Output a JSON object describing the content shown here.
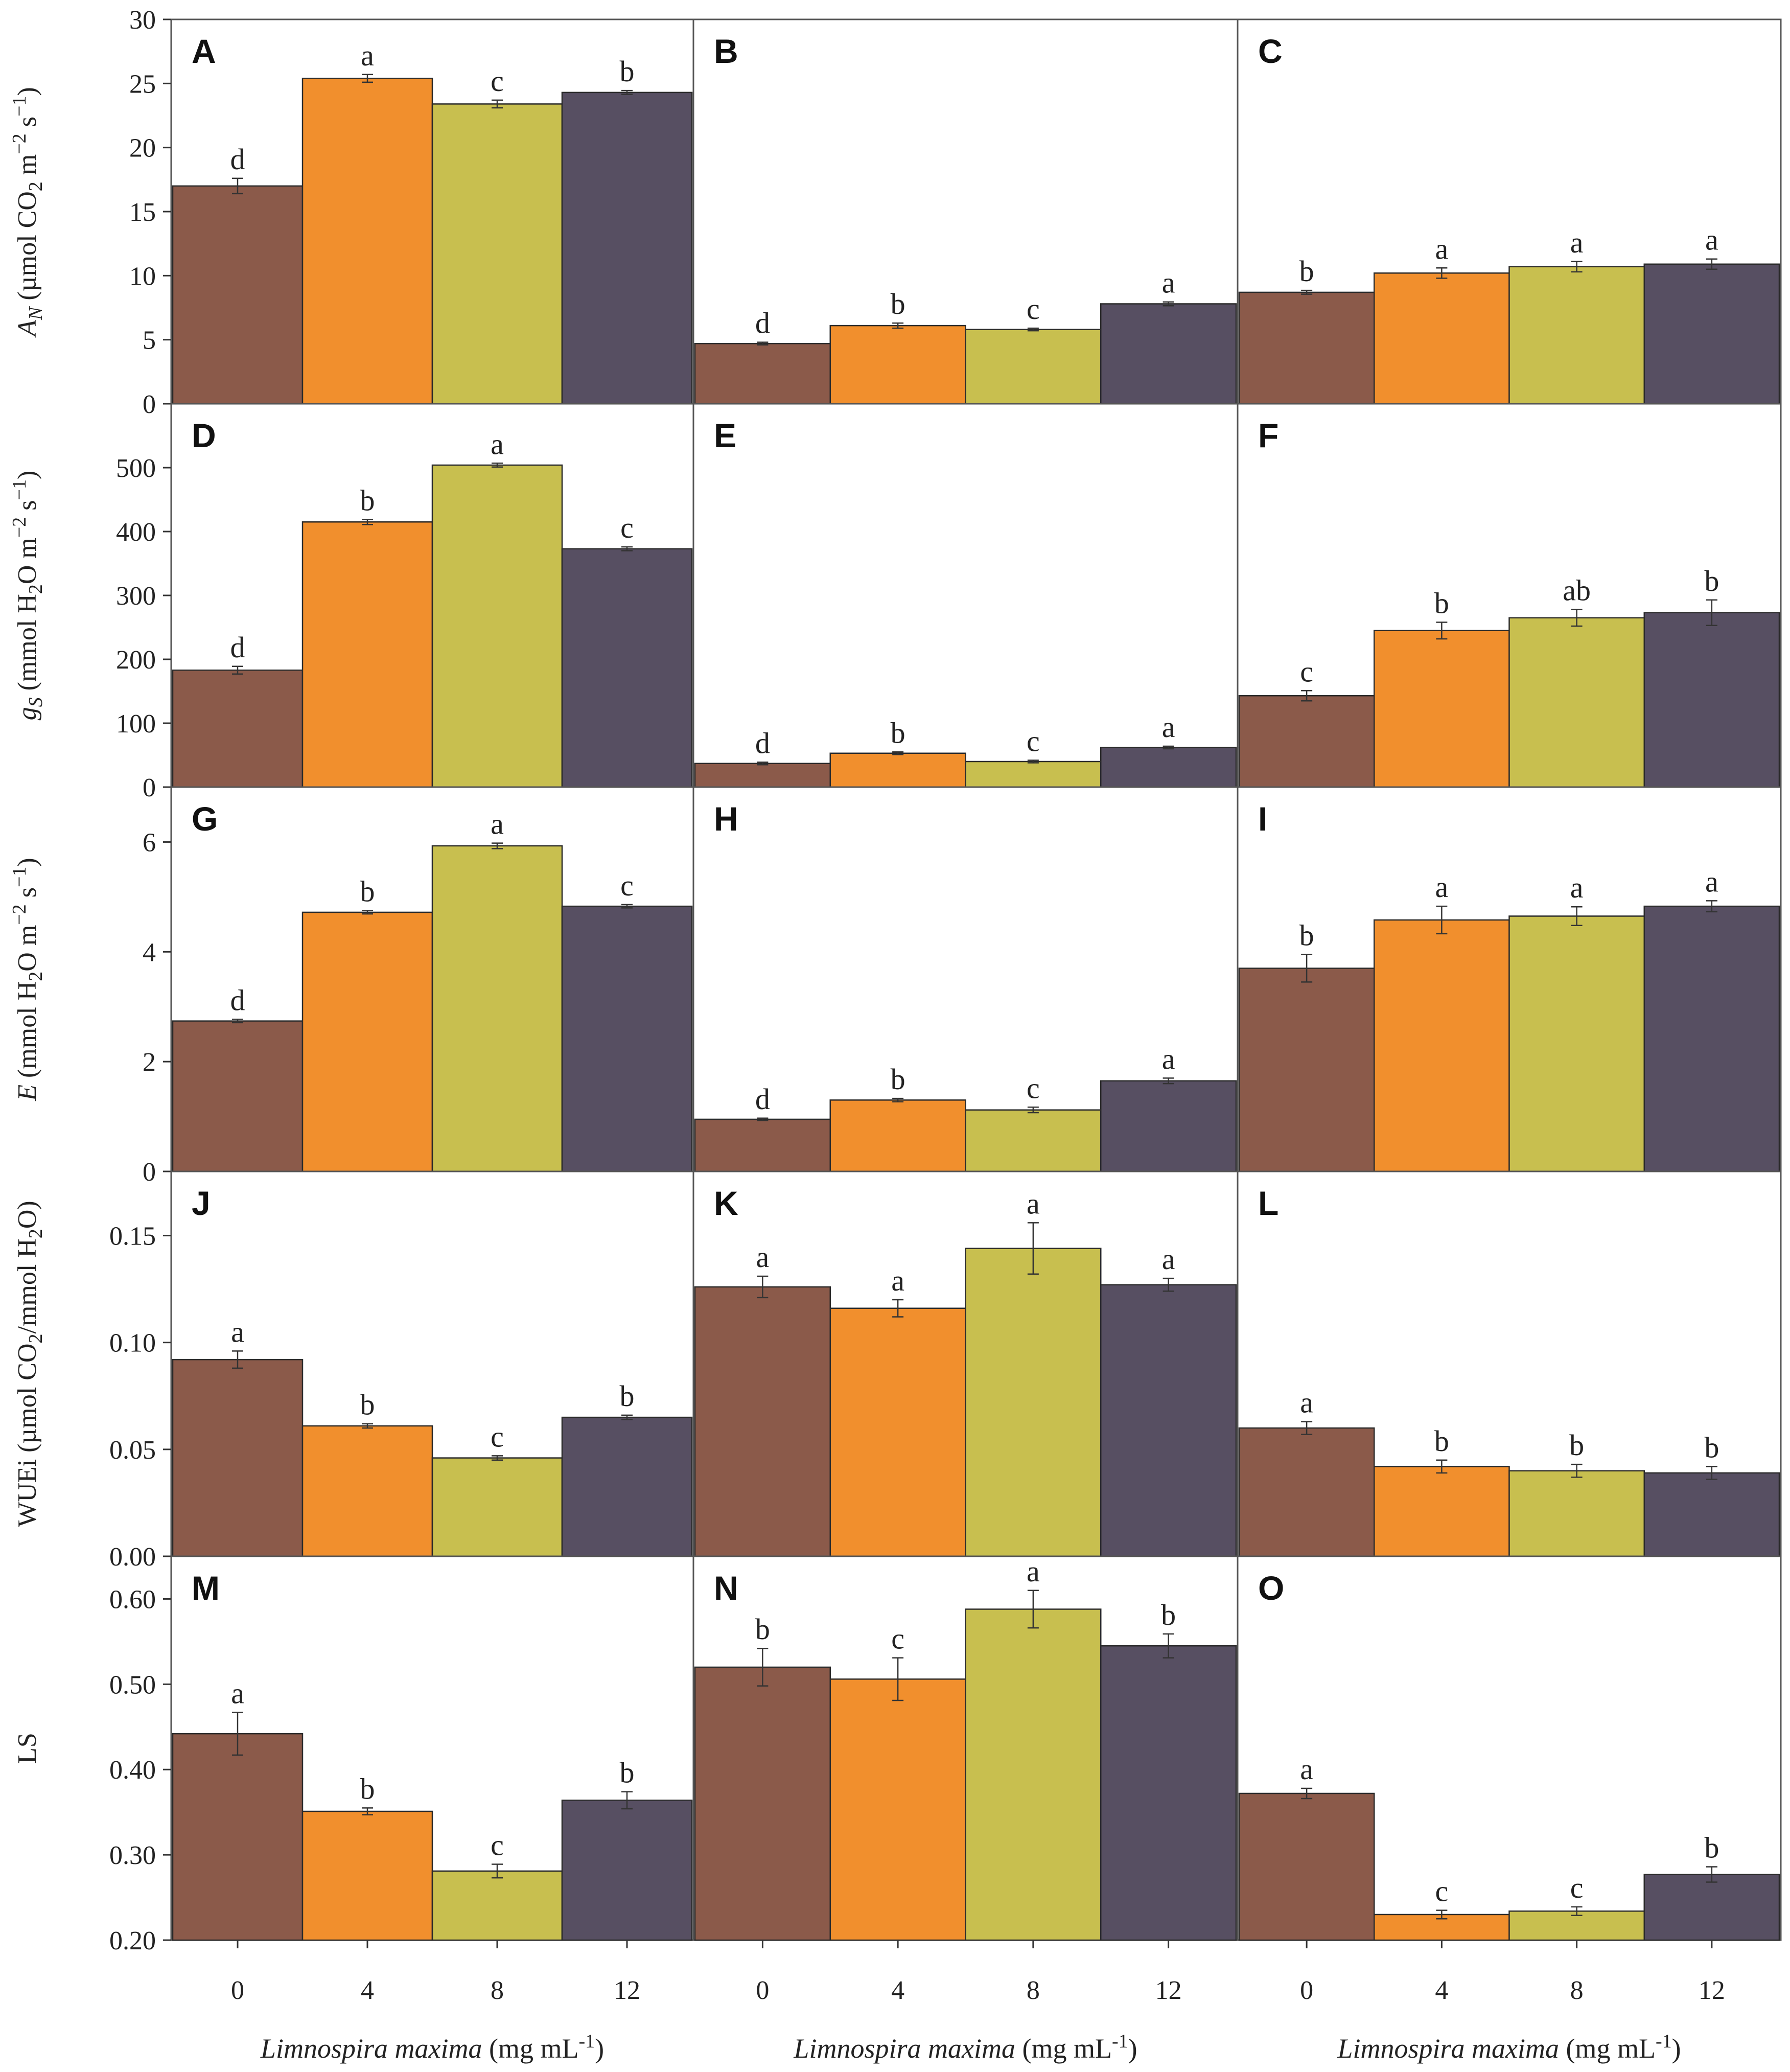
{
  "colors": {
    "0": "#8b5a4a",
    "4": "#f18f2d",
    "8": "#c8bf4f",
    "12": "#574f62"
  },
  "x_axis": {
    "ticks": [
      "0",
      "4",
      "8",
      "12"
    ],
    "label_italic": "Limnospira maxima",
    "label_rest": " (mg mL",
    "label_sup": "-1",
    "label_close": ")"
  },
  "chart_data": {
    "type": "bar",
    "categories": [
      "0",
      "4",
      "8",
      "12"
    ],
    "rows": [
      {
        "ylabel_html": "<tspan font-style=\"italic\">A</tspan><tspan font-style=\"italic\" font-size=\"38\" dy=\"12\">N</tspan><tspan dy=\"-12\"> (µmol CO</tspan><tspan font-size=\"38\" dy=\"12\">2</tspan><tspan dy=\"-12\"> m</tspan><tspan font-size=\"38\" dy=\"-20\">−2</tspan><tspan dy=\"20\"> s</tspan><tspan font-size=\"38\" dy=\"-20\">−1</tspan><tspan dy=\"20\">)</tspan>",
        "ylim": [
          0,
          30
        ],
        "ticks": [
          "0",
          "5",
          "10",
          "15",
          "20",
          "25",
          "30"
        ],
        "tick_values": [
          0,
          5,
          10,
          15,
          20,
          25,
          30
        ],
        "panels": [
          {
            "label": "A",
            "values": [
              17.0,
              25.4,
              23.4,
              24.3
            ],
            "errors": [
              0.6,
              0.3,
              0.3,
              0.15
            ],
            "letters": [
              "d",
              "a",
              "c",
              "b"
            ]
          },
          {
            "label": "B",
            "values": [
              4.7,
              6.1,
              5.8,
              7.8
            ],
            "errors": [
              0.1,
              0.2,
              0.1,
              0.15
            ],
            "letters": [
              "d",
              "b",
              "c",
              "a"
            ]
          },
          {
            "label": "C",
            "values": [
              8.7,
              10.2,
              10.7,
              10.9
            ],
            "errors": [
              0.15,
              0.4,
              0.4,
              0.4
            ],
            "letters": [
              "b",
              "a",
              "a",
              "a"
            ]
          }
        ]
      },
      {
        "ylabel_html": "<tspan font-style=\"italic\">g</tspan><tspan font-style=\"italic\" font-size=\"38\" dy=\"12\">S</tspan><tspan dy=\"-12\"> (mmol H</tspan><tspan font-size=\"38\" dy=\"12\">2</tspan><tspan dy=\"-12\">O m</tspan><tspan font-size=\"38\" dy=\"-20\">−2</tspan><tspan dy=\"20\"> s</tspan><tspan font-size=\"38\" dy=\"-20\">−1</tspan><tspan dy=\"20\">)</tspan>",
        "ylim": [
          0,
          600
        ],
        "ticks": [
          "0",
          "100",
          "200",
          "300",
          "400",
          "500"
        ],
        "tick_values": [
          0,
          100,
          200,
          300,
          400,
          500
        ],
        "panels": [
          {
            "label": "D",
            "values": [
              183,
              415,
              504,
              373
            ],
            "errors": [
              6,
              4,
              3,
              3
            ],
            "letters": [
              "d",
              "b",
              "a",
              "c"
            ]
          },
          {
            "label": "E",
            "values": [
              37,
              53,
              40,
              62
            ],
            "errors": [
              2,
              2,
              2,
              2
            ],
            "letters": [
              "d",
              "b",
              "c",
              "a"
            ]
          },
          {
            "label": "F",
            "values": [
              143,
              245,
              265,
              273
            ],
            "errors": [
              8,
              13,
              13,
              20
            ],
            "letters": [
              "c",
              "b",
              "ab",
              "b"
            ]
          }
        ]
      },
      {
        "ylabel_html": "<tspan font-style=\"italic\">E</tspan><tspan> (mmol H</tspan><tspan font-size=\"38\" dy=\"12\">2</tspan><tspan dy=\"-12\">O m</tspan><tspan font-size=\"38\" dy=\"-20\">−2</tspan><tspan dy=\"20\"> s</tspan><tspan font-size=\"38\" dy=\"-20\">−1</tspan><tspan dy=\"20\">)</tspan>",
        "ylim": [
          0,
          7
        ],
        "ticks": [
          "0",
          "2",
          "4",
          "6"
        ],
        "tick_values": [
          0,
          2,
          4,
          6
        ],
        "panels": [
          {
            "label": "G",
            "values": [
              2.74,
              4.72,
              5.93,
              4.83
            ],
            "errors": [
              0.03,
              0.03,
              0.05,
              0.03
            ],
            "letters": [
              "d",
              "b",
              "a",
              "c"
            ]
          },
          {
            "label": "H",
            "values": [
              0.95,
              1.3,
              1.12,
              1.65
            ],
            "errors": [
              0.02,
              0.03,
              0.05,
              0.05
            ],
            "letters": [
              "d",
              "b",
              "c",
              "a"
            ]
          },
          {
            "label": "I",
            "values": [
              3.7,
              4.58,
              4.65,
              4.83
            ],
            "errors": [
              0.25,
              0.25,
              0.17,
              0.1
            ],
            "letters": [
              "b",
              "a",
              "a",
              "a"
            ]
          }
        ]
      },
      {
        "ylabel_html": "<tspan>WUEi (µmol CO</tspan><tspan font-size=\"38\" dy=\"12\">2</tspan><tspan dy=\"-12\">/mmol H</tspan><tspan font-size=\"38\" dy=\"12\">2</tspan><tspan dy=\"-12\">O)</tspan>",
        "ylim": [
          0,
          0.18
        ],
        "ticks": [
          "0.00",
          "0.05",
          "0.10",
          "0.15"
        ],
        "tick_values": [
          0,
          0.05,
          0.1,
          0.15
        ],
        "panels": [
          {
            "label": "J",
            "values": [
              0.092,
              0.061,
              0.046,
              0.065
            ],
            "errors": [
              0.004,
              0.001,
              0.001,
              0.001
            ],
            "letters": [
              "a",
              "b",
              "c",
              "b"
            ]
          },
          {
            "label": "K",
            "values": [
              0.126,
              0.116,
              0.144,
              0.127
            ],
            "errors": [
              0.005,
              0.004,
              0.012,
              0.003
            ],
            "letters": [
              "a",
              "a",
              "a",
              "a"
            ]
          },
          {
            "label": "L",
            "values": [
              0.06,
              0.042,
              0.04,
              0.039
            ],
            "errors": [
              0.003,
              0.003,
              0.003,
              0.003
            ],
            "letters": [
              "a",
              "b",
              "b",
              "b"
            ]
          }
        ]
      },
      {
        "ylabel_html": "<tspan>LS</tspan>",
        "ylim": [
          0.2,
          0.65
        ],
        "ticks": [
          "0.20",
          "0.30",
          "0.40",
          "0.50",
          "0.60"
        ],
        "tick_values": [
          0.2,
          0.3,
          0.4,
          0.5,
          0.6
        ],
        "panels": [
          {
            "label": "M",
            "values": [
              0.442,
              0.351,
              0.281,
              0.364
            ],
            "errors": [
              0.025,
              0.004,
              0.008,
              0.01
            ],
            "letters": [
              "a",
              "b",
              "c",
              "b"
            ]
          },
          {
            "label": "N",
            "values": [
              0.52,
              0.506,
              0.588,
              0.545
            ],
            "errors": [
              0.022,
              0.025,
              0.022,
              0.014
            ],
            "letters": [
              "b",
              "c",
              "a",
              "b"
            ]
          },
          {
            "label": "O",
            "values": [
              0.372,
              0.23,
              0.234,
              0.277
            ],
            "errors": [
              0.006,
              0.005,
              0.005,
              0.009
            ],
            "letters": [
              "a",
              "c",
              "c",
              "b"
            ]
          }
        ]
      }
    ]
  }
}
